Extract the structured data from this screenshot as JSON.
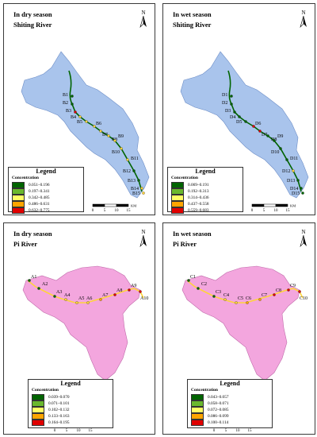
{
  "panels": [
    {
      "season": "In dry season",
      "river": "Shiting River",
      "legend_title": "Legend",
      "legend_subtitle": "Concentration",
      "legend": [
        {
          "range": "0.051–0.196",
          "color": "#006400"
        },
        {
          "range": "0.197–0.341",
          "color": "#6ab82d"
        },
        {
          "range": "0.342–0.485",
          "color": "#ffff66"
        },
        {
          "range": "0.486–0.631",
          "color": "#ffa500"
        },
        {
          "range": "0.632–0.775",
          "color": "#e00000"
        }
      ],
      "sites": [
        "B1",
        "B2",
        "B3",
        "B4",
        "B5",
        "B6",
        "B7",
        "B8",
        "B9",
        "B10",
        "B11",
        "B12",
        "B13",
        "B14",
        "B15"
      ],
      "scale": {
        "ticks": [
          "0",
          "5",
          "10",
          "15"
        ],
        "unit": "KM"
      }
    },
    {
      "season": "In wet season",
      "river": "Shiting River",
      "legend_title": "Legend",
      "legend_subtitle": "Concentration",
      "legend": [
        {
          "range": "0.069–0.191",
          "color": "#006400"
        },
        {
          "range": "0.192–0.313",
          "color": "#6ab82d"
        },
        {
          "range": "0.314–0.436",
          "color": "#ffff66"
        },
        {
          "range": "0.437–0.558",
          "color": "#ffa500"
        },
        {
          "range": "0.559–0.683",
          "color": "#e00000"
        }
      ],
      "sites": [
        "D1",
        "D2",
        "D3",
        "D4",
        "D5",
        "D6",
        "D7",
        "D8",
        "D9",
        "D10",
        "D11",
        "D12",
        "D13",
        "D14",
        "D15"
      ],
      "scale": {
        "ticks": [
          "0",
          "5",
          "10",
          "15"
        ],
        "unit": "KM"
      }
    },
    {
      "season": "In dry season",
      "river": "Pi River",
      "legend_title": "Legend",
      "legend_subtitle": "Concentration",
      "legend": [
        {
          "range": "0.039–0.070",
          "color": "#006400"
        },
        {
          "range": "0.071–0.101",
          "color": "#6ab82d"
        },
        {
          "range": "0.102–0.132",
          "color": "#ffff66"
        },
        {
          "range": "0.133–0.163",
          "color": "#ffa500"
        },
        {
          "range": "0.164–0.195",
          "color": "#e00000"
        }
      ],
      "sites": [
        "A1",
        "A2",
        "A3",
        "A4",
        "A5",
        "A6",
        "A7",
        "A8",
        "A9",
        "A10"
      ],
      "scale": {
        "ticks": [
          "0",
          "5",
          "10",
          "15"
        ],
        "unit": "KM"
      }
    },
    {
      "season": "In wet season",
      "river": "Pi River",
      "legend_title": "Legend",
      "legend_subtitle": "Concentration",
      "legend": [
        {
          "range": "0.043–0.057",
          "color": "#006400"
        },
        {
          "range": "0.058–0.071",
          "color": "#6ab82d"
        },
        {
          "range": "0.072–0.085",
          "color": "#ffff66"
        },
        {
          "range": "0.086–0.099",
          "color": "#ffa500"
        },
        {
          "range": "0.100–0.114",
          "color": "#e00000"
        }
      ],
      "sites": [
        "C1",
        "C2",
        "C3",
        "C4",
        "C5",
        "C6",
        "C7",
        "C8",
        "C9",
        "C10"
      ],
      "scale": {
        "ticks": [
          "0",
          "5",
          "10",
          "15"
        ],
        "unit": "KM"
      }
    }
  ],
  "north_label": "N",
  "colors": {
    "shiting_basin": "#a9c4ec",
    "pi_basin": "#f3a6de",
    "frame": "#3a3a3a"
  },
  "icons": [
    "north-arrow-icon",
    "scale-bar-icon"
  ]
}
